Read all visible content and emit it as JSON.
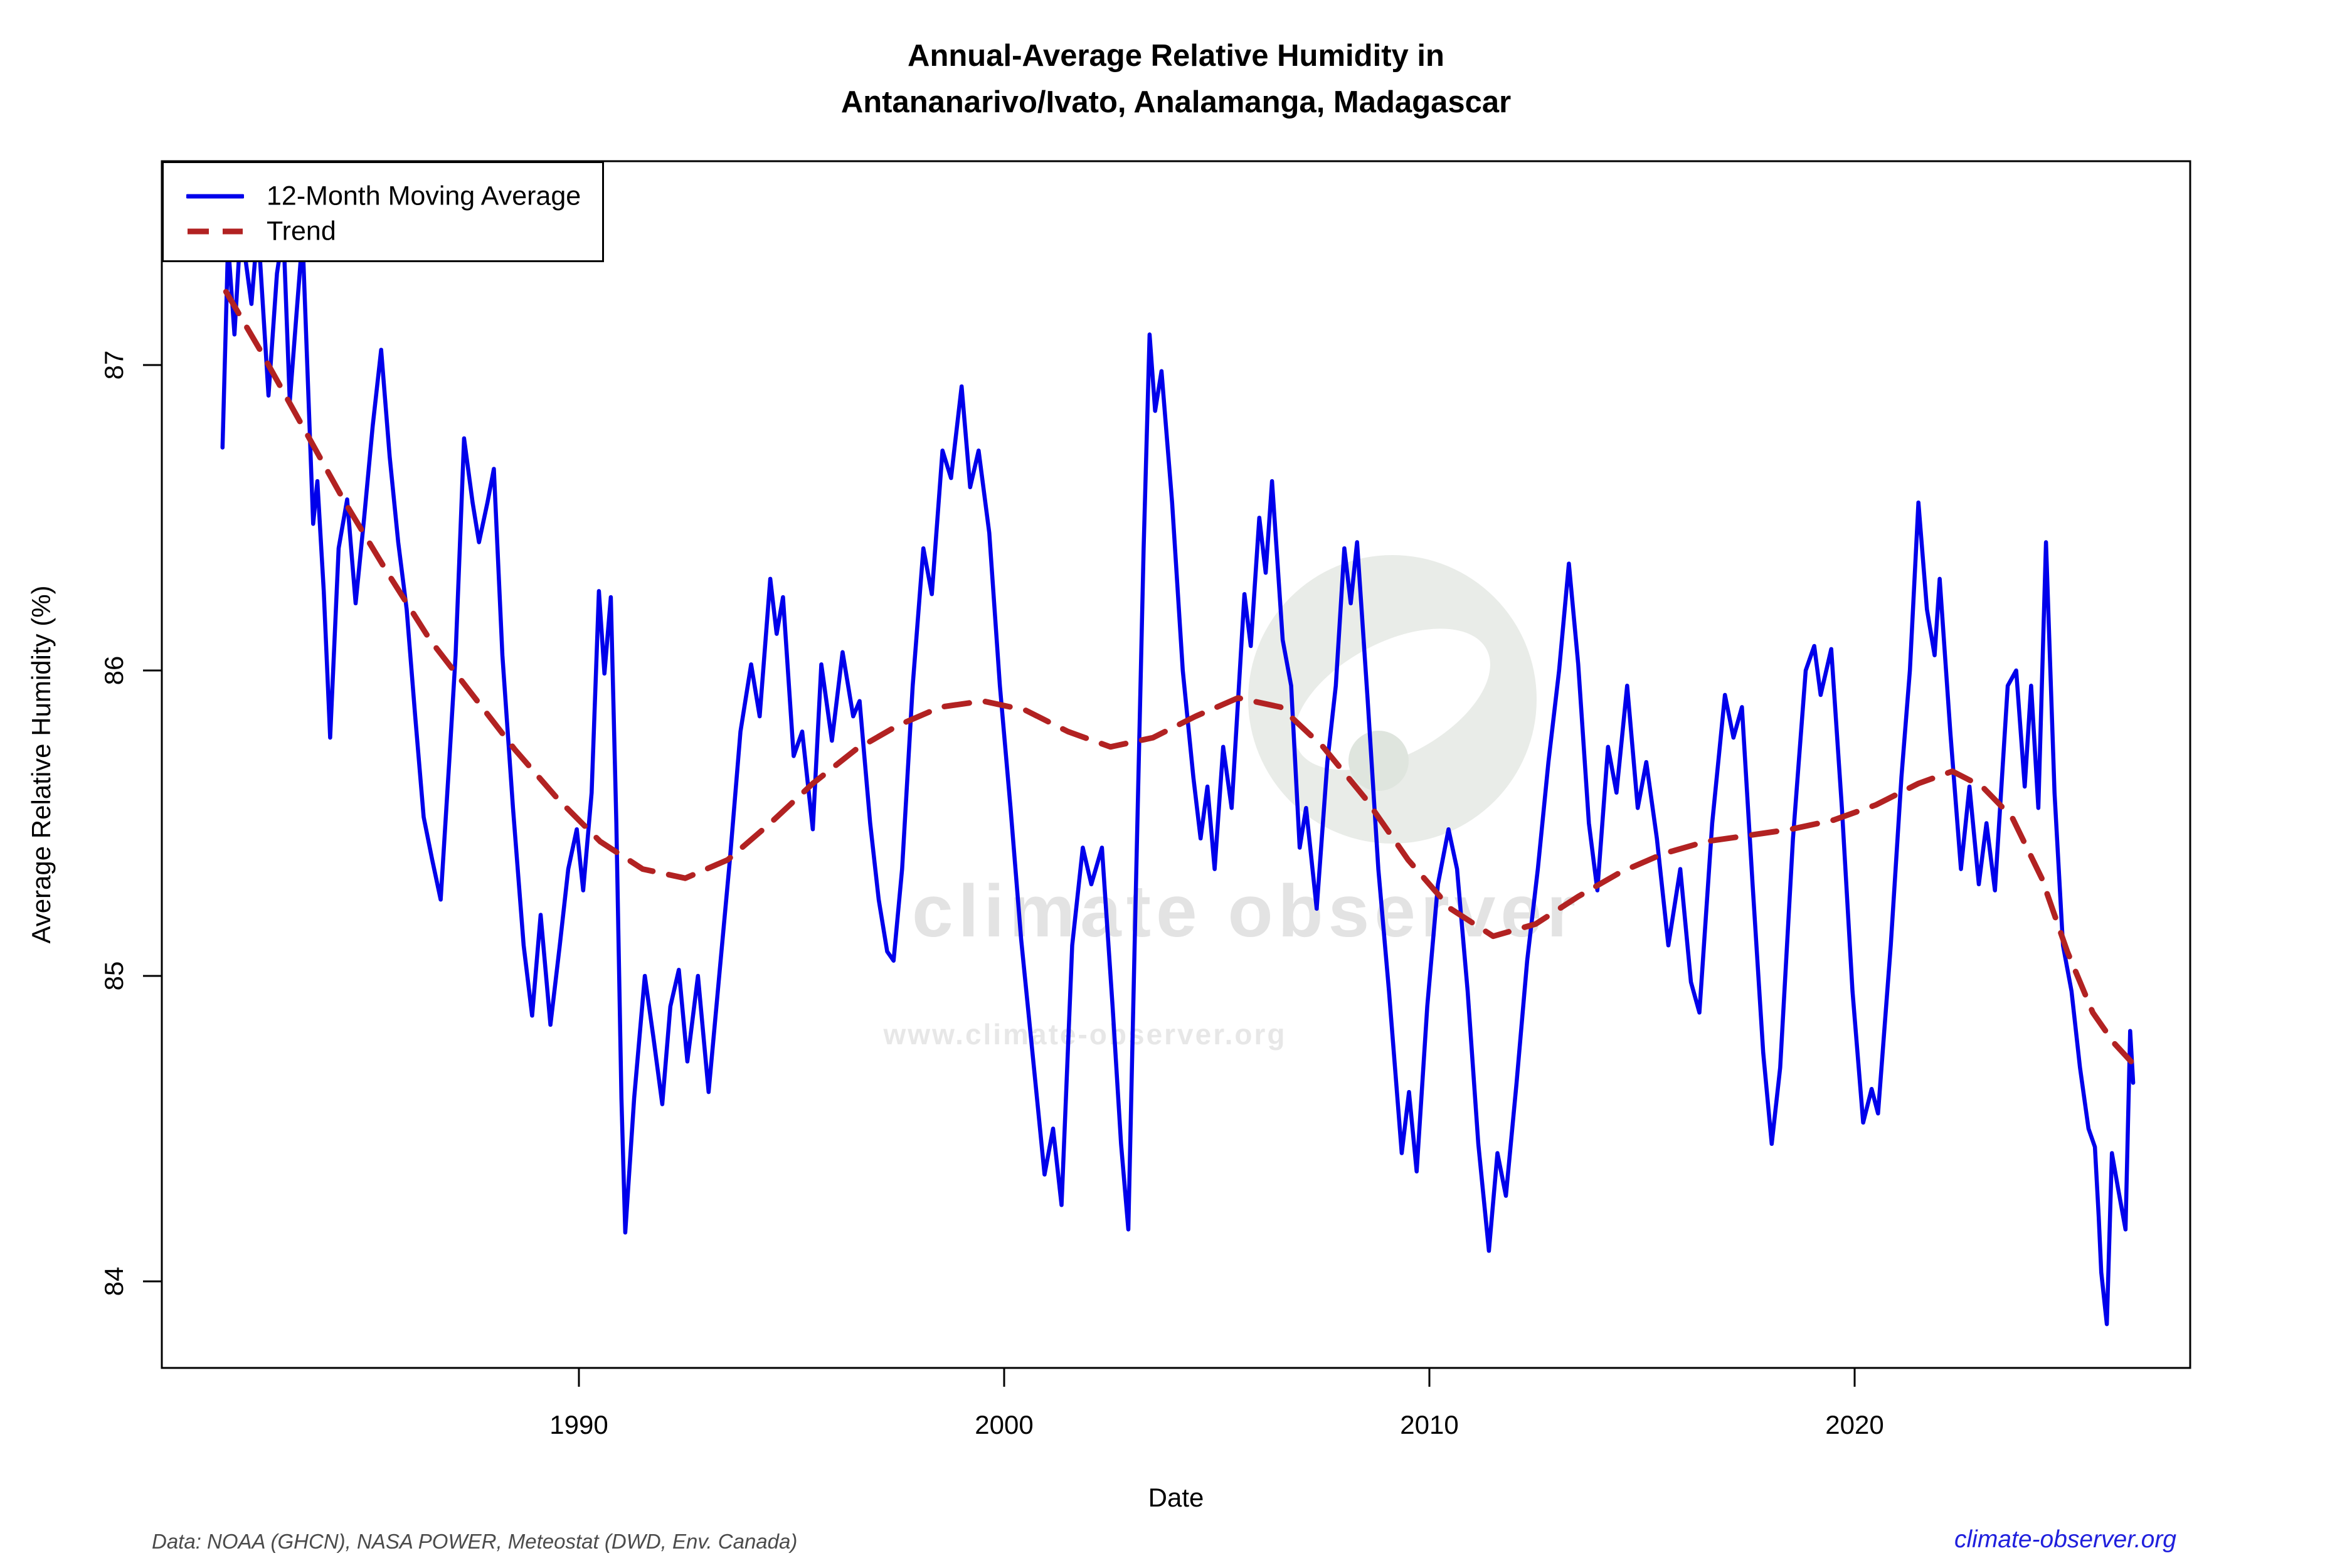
{
  "title": {
    "line1": "Annual-Average Relative Humidity in",
    "line2": "Antananarivo/Ivato, Analamanga, Madagascar"
  },
  "axes": {
    "y_label": "Average Relative Humidity (%)",
    "x_label": "Date",
    "y_ticks": [
      84,
      85,
      86,
      87
    ],
    "x_ticks": [
      1990,
      2000,
      2010,
      2020
    ]
  },
  "legend": {
    "items": [
      {
        "label": "12-Month Moving Average",
        "color": "#0000EB",
        "style": "solid"
      },
      {
        "label": "Trend",
        "color": "#B22222",
        "style": "dashed"
      }
    ]
  },
  "footer": {
    "source": "Data: NOAA (GHCN), NASA POWER, Meteostat (DWD, Env. Canada)",
    "site": "climate-observer.org"
  },
  "watermark": {
    "line1": "climate observer",
    "line2": "www.climate-observer.org",
    "logo": "climate-observer-eye-logo"
  },
  "colors": {
    "moving_average": "#0000EB",
    "trend": "#B22222",
    "axis": "#000000",
    "footer_source": "#4b4b4b",
    "footer_site": "#2020dd",
    "watermark": "#e3e3e3"
  },
  "chart_data": {
    "type": "line",
    "title": "Annual-Average Relative Humidity in Antananarivo/Ivato, Analamanga, Madagascar",
    "xlabel": "Date",
    "ylabel": "Average Relative Humidity (%)",
    "x_range": [
      1980.2,
      2027.9
    ],
    "y_range": [
      83.72,
      87.67
    ],
    "grid": false,
    "legend_position": "top-left",
    "series": [
      {
        "name": "12-Month Moving Average",
        "color": "#0000EB",
        "style": "solid",
        "points": [
          [
            1981.62,
            86.73
          ],
          [
            1981.75,
            87.4
          ],
          [
            1981.9,
            87.1
          ],
          [
            1982.05,
            87.46
          ],
          [
            1982.3,
            87.2
          ],
          [
            1982.45,
            87.46
          ],
          [
            1982.7,
            86.9
          ],
          [
            1982.9,
            87.3
          ],
          [
            1983.05,
            87.44
          ],
          [
            1983.2,
            86.88
          ],
          [
            1983.35,
            87.15
          ],
          [
            1983.5,
            87.42
          ],
          [
            1983.75,
            86.48
          ],
          [
            1983.85,
            86.62
          ],
          [
            1984.0,
            86.26
          ],
          [
            1984.15,
            85.78
          ],
          [
            1984.35,
            86.4
          ],
          [
            1984.55,
            86.56
          ],
          [
            1984.75,
            86.22
          ],
          [
            1984.95,
            86.5
          ],
          [
            1985.15,
            86.8
          ],
          [
            1985.35,
            87.05
          ],
          [
            1985.55,
            86.7
          ],
          [
            1985.75,
            86.42
          ],
          [
            1985.95,
            86.2
          ],
          [
            1986.15,
            85.85
          ],
          [
            1986.35,
            85.52
          ],
          [
            1986.55,
            85.38
          ],
          [
            1986.75,
            85.25
          ],
          [
            1986.95,
            85.7
          ],
          [
            1987.1,
            86.05
          ],
          [
            1987.3,
            86.76
          ],
          [
            1987.5,
            86.55
          ],
          [
            1987.65,
            86.42
          ],
          [
            1987.85,
            86.55
          ],
          [
            1988.0,
            86.66
          ],
          [
            1988.2,
            86.05
          ],
          [
            1988.45,
            85.55
          ],
          [
            1988.7,
            85.1
          ],
          [
            1988.9,
            84.87
          ],
          [
            1989.1,
            85.2
          ],
          [
            1989.33,
            84.84
          ],
          [
            1989.55,
            85.1
          ],
          [
            1989.75,
            85.35
          ],
          [
            1989.95,
            85.48
          ],
          [
            1990.1,
            85.28
          ],
          [
            1990.3,
            85.6
          ],
          [
            1990.47,
            86.26
          ],
          [
            1990.6,
            85.99
          ],
          [
            1990.75,
            86.24
          ],
          [
            1990.88,
            85.5
          ],
          [
            1991.0,
            84.6
          ],
          [
            1991.09,
            84.16
          ],
          [
            1991.3,
            84.6
          ],
          [
            1991.55,
            85.0
          ],
          [
            1991.75,
            84.8
          ],
          [
            1991.96,
            84.58
          ],
          [
            1992.15,
            84.9
          ],
          [
            1992.35,
            85.02
          ],
          [
            1992.55,
            84.72
          ],
          [
            1992.8,
            85.0
          ],
          [
            1993.05,
            84.62
          ],
          [
            1993.3,
            85.0
          ],
          [
            1993.55,
            85.38
          ],
          [
            1993.8,
            85.8
          ],
          [
            1994.05,
            86.02
          ],
          [
            1994.25,
            85.85
          ],
          [
            1994.5,
            86.3
          ],
          [
            1994.65,
            86.12
          ],
          [
            1994.8,
            86.24
          ],
          [
            1995.05,
            85.72
          ],
          [
            1995.25,
            85.8
          ],
          [
            1995.5,
            85.48
          ],
          [
            1995.7,
            86.02
          ],
          [
            1995.95,
            85.77
          ],
          [
            1996.2,
            86.06
          ],
          [
            1996.45,
            85.85
          ],
          [
            1996.6,
            85.9
          ],
          [
            1996.85,
            85.5
          ],
          [
            1997.05,
            85.25
          ],
          [
            1997.25,
            85.08
          ],
          [
            1997.4,
            85.05
          ],
          [
            1997.6,
            85.35
          ],
          [
            1997.85,
            85.95
          ],
          [
            1998.1,
            86.4
          ],
          [
            1998.3,
            86.25
          ],
          [
            1998.55,
            86.72
          ],
          [
            1998.75,
            86.63
          ],
          [
            1999.0,
            86.93
          ],
          [
            1999.2,
            86.6
          ],
          [
            1999.4,
            86.72
          ],
          [
            1999.65,
            86.45
          ],
          [
            1999.9,
            85.95
          ],
          [
            2000.15,
            85.55
          ],
          [
            2000.4,
            85.12
          ],
          [
            2000.7,
            84.7
          ],
          [
            2000.95,
            84.35
          ],
          [
            2001.15,
            84.5
          ],
          [
            2001.35,
            84.25
          ],
          [
            2001.6,
            85.1
          ],
          [
            2001.85,
            85.42
          ],
          [
            2002.05,
            85.3
          ],
          [
            2002.3,
            85.42
          ],
          [
            2002.55,
            84.9
          ],
          [
            2002.75,
            84.45
          ],
          [
            2002.92,
            84.17
          ],
          [
            2003.1,
            85.3
          ],
          [
            2003.28,
            86.4
          ],
          [
            2003.42,
            87.1
          ],
          [
            2003.55,
            86.85
          ],
          [
            2003.7,
            86.98
          ],
          [
            2003.95,
            86.55
          ],
          [
            2004.2,
            86.0
          ],
          [
            2004.45,
            85.65
          ],
          [
            2004.62,
            85.45
          ],
          [
            2004.78,
            85.62
          ],
          [
            2004.95,
            85.35
          ],
          [
            2005.15,
            85.75
          ],
          [
            2005.35,
            85.55
          ],
          [
            2005.65,
            86.25
          ],
          [
            2005.8,
            86.08
          ],
          [
            2006.0,
            86.5
          ],
          [
            2006.15,
            86.32
          ],
          [
            2006.3,
            86.62
          ],
          [
            2006.55,
            86.1
          ],
          [
            2006.75,
            85.95
          ],
          [
            2006.95,
            85.42
          ],
          [
            2007.1,
            85.55
          ],
          [
            2007.35,
            85.22
          ],
          [
            2007.6,
            85.7
          ],
          [
            2007.8,
            85.95
          ],
          [
            2008.0,
            86.4
          ],
          [
            2008.15,
            86.22
          ],
          [
            2008.3,
            86.42
          ],
          [
            2008.55,
            85.9
          ],
          [
            2008.8,
            85.35
          ],
          [
            2009.05,
            84.95
          ],
          [
            2009.35,
            84.42
          ],
          [
            2009.52,
            84.62
          ],
          [
            2009.7,
            84.36
          ],
          [
            2009.95,
            84.9
          ],
          [
            2010.2,
            85.3
          ],
          [
            2010.45,
            85.48
          ],
          [
            2010.65,
            85.35
          ],
          [
            2010.9,
            84.95
          ],
          [
            2011.15,
            84.45
          ],
          [
            2011.4,
            84.1
          ],
          [
            2011.6,
            84.42
          ],
          [
            2011.8,
            84.28
          ],
          [
            2012.05,
            84.65
          ],
          [
            2012.3,
            85.05
          ],
          [
            2012.55,
            85.35
          ],
          [
            2012.8,
            85.7
          ],
          [
            2013.05,
            86.0
          ],
          [
            2013.28,
            86.35
          ],
          [
            2013.5,
            86.02
          ],
          [
            2013.75,
            85.5
          ],
          [
            2013.95,
            85.28
          ],
          [
            2014.2,
            85.75
          ],
          [
            2014.4,
            85.6
          ],
          [
            2014.65,
            85.95
          ],
          [
            2014.9,
            85.55
          ],
          [
            2015.1,
            85.7
          ],
          [
            2015.35,
            85.45
          ],
          [
            2015.62,
            85.1
          ],
          [
            2015.9,
            85.35
          ],
          [
            2016.15,
            84.98
          ],
          [
            2016.35,
            84.88
          ],
          [
            2016.65,
            85.5
          ],
          [
            2016.95,
            85.92
          ],
          [
            2017.15,
            85.78
          ],
          [
            2017.35,
            85.88
          ],
          [
            2017.6,
            85.3
          ],
          [
            2017.85,
            84.75
          ],
          [
            2018.05,
            84.45
          ],
          [
            2018.25,
            84.7
          ],
          [
            2018.55,
            85.45
          ],
          [
            2018.85,
            86.0
          ],
          [
            2019.05,
            86.08
          ],
          [
            2019.2,
            85.92
          ],
          [
            2019.45,
            86.07
          ],
          [
            2019.7,
            85.55
          ],
          [
            2019.95,
            84.95
          ],
          [
            2020.2,
            84.52
          ],
          [
            2020.4,
            84.63
          ],
          [
            2020.55,
            84.55
          ],
          [
            2020.85,
            85.1
          ],
          [
            2021.1,
            85.65
          ],
          [
            2021.3,
            86.0
          ],
          [
            2021.5,
            86.55
          ],
          [
            2021.7,
            86.2
          ],
          [
            2021.88,
            86.05
          ],
          [
            2022.0,
            86.3
          ],
          [
            2022.25,
            85.8
          ],
          [
            2022.5,
            85.35
          ],
          [
            2022.7,
            85.62
          ],
          [
            2022.92,
            85.3
          ],
          [
            2023.1,
            85.5
          ],
          [
            2023.3,
            85.28
          ],
          [
            2023.6,
            85.95
          ],
          [
            2023.8,
            86.0
          ],
          [
            2024.0,
            85.62
          ],
          [
            2024.15,
            85.95
          ],
          [
            2024.32,
            85.55
          ],
          [
            2024.5,
            86.42
          ],
          [
            2024.7,
            85.6
          ],
          [
            2024.9,
            85.1
          ],
          [
            2025.1,
            84.95
          ],
          [
            2025.3,
            84.7
          ],
          [
            2025.5,
            84.5
          ],
          [
            2025.65,
            84.44
          ],
          [
            2025.74,
            84.21
          ],
          [
            2025.8,
            84.03
          ],
          [
            2025.93,
            83.86
          ],
          [
            2026.05,
            84.42
          ],
          [
            2026.2,
            84.3
          ],
          [
            2026.37,
            84.17
          ],
          [
            2026.48,
            84.82
          ],
          [
            2026.55,
            84.65
          ]
        ]
      },
      {
        "name": "Trend",
        "color": "#B22222",
        "style": "dashed",
        "points": [
          [
            1981.7,
            87.24
          ],
          [
            1982.5,
            87.05
          ],
          [
            1983.5,
            86.8
          ],
          [
            1984.5,
            86.55
          ],
          [
            1985.5,
            86.32
          ],
          [
            1986.5,
            86.1
          ],
          [
            1987.5,
            85.92
          ],
          [
            1988.5,
            85.74
          ],
          [
            1989.5,
            85.58
          ],
          [
            1990.5,
            85.44
          ],
          [
            1991.5,
            85.35
          ],
          [
            1992.5,
            85.32
          ],
          [
            1993.5,
            85.38
          ],
          [
            1994.5,
            85.5
          ],
          [
            1995.5,
            85.63
          ],
          [
            1996.5,
            85.74
          ],
          [
            1997.5,
            85.82
          ],
          [
            1998.5,
            85.88
          ],
          [
            1999.5,
            85.9
          ],
          [
            2000.5,
            85.87
          ],
          [
            2001.5,
            85.8
          ],
          [
            2002.5,
            85.75
          ],
          [
            2003.5,
            85.78
          ],
          [
            2004.5,
            85.85
          ],
          [
            2005.5,
            85.91
          ],
          [
            2006.5,
            85.88
          ],
          [
            2007.5,
            85.75
          ],
          [
            2008.5,
            85.58
          ],
          [
            2009.5,
            85.38
          ],
          [
            2010.5,
            85.22
          ],
          [
            2011.5,
            85.13
          ],
          [
            2012.5,
            85.17
          ],
          [
            2013.5,
            85.26
          ],
          [
            2014.5,
            85.34
          ],
          [
            2015.5,
            85.4
          ],
          [
            2016.5,
            85.44
          ],
          [
            2017.5,
            85.46
          ],
          [
            2018.5,
            85.48
          ],
          [
            2019.5,
            85.51
          ],
          [
            2020.5,
            85.56
          ],
          [
            2021.5,
            85.63
          ],
          [
            2022.3,
            85.67
          ],
          [
            2023.0,
            85.62
          ],
          [
            2023.7,
            85.52
          ],
          [
            2024.4,
            85.32
          ],
          [
            2025.0,
            85.08
          ],
          [
            2025.6,
            84.88
          ],
          [
            2026.1,
            84.78
          ],
          [
            2026.5,
            84.72
          ]
        ]
      }
    ]
  }
}
